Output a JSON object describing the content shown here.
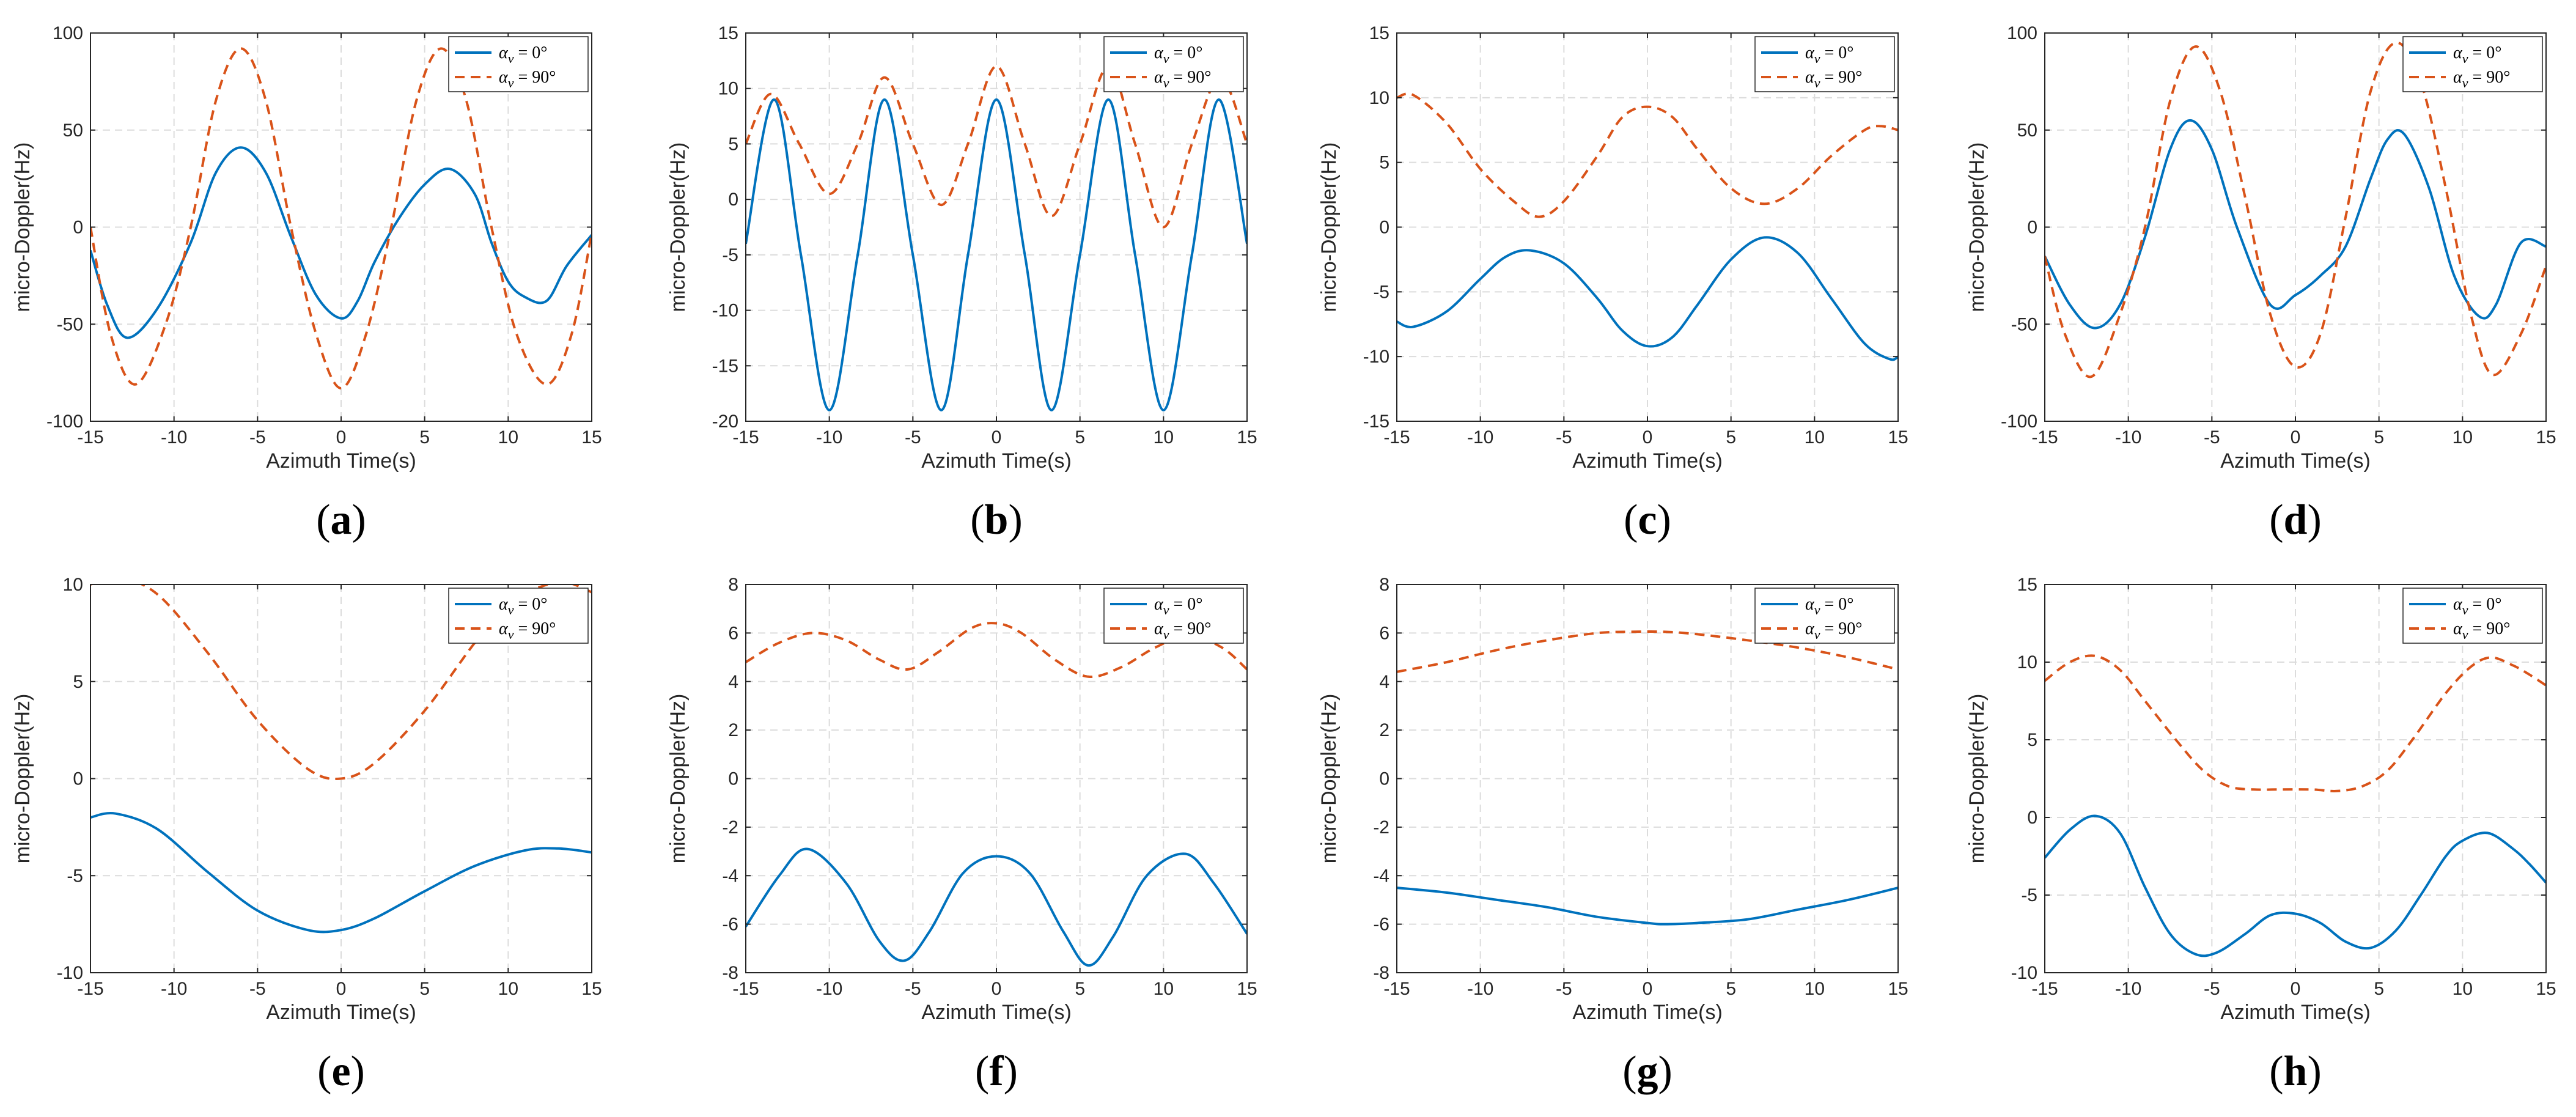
{
  "colors": {
    "series0": "#0072bd",
    "series1": "#d95319",
    "grid": "#dcdcdc",
    "axis": "#262626"
  },
  "legend_labels": [
    "α_v = 0°",
    "α_v = 90°"
  ],
  "chart_data": [
    {
      "panel": "(a)",
      "type": "line",
      "xlabel": "Azimuth Time(s)",
      "ylabel": "micro-Doppler(Hz)",
      "xlim": [
        -15,
        15
      ],
      "ylim": [
        -100,
        100
      ],
      "xticks": [
        -15,
        -10,
        -5,
        0,
        5,
        10,
        15
      ],
      "yticks": [
        -100,
        -50,
        0,
        50,
        100
      ],
      "series": [
        {
          "name": "α_v = 0°",
          "x": [
            -15,
            -14,
            -12.8,
            -11,
            -9,
            -7.5,
            -6,
            -4.5,
            -3,
            -1.5,
            0,
            1,
            2,
            3.5,
            5,
            6.5,
            8,
            9,
            10,
            11,
            12.3,
            13.5,
            15
          ],
          "y": [
            -12,
            -40,
            -57,
            -42,
            -8,
            28,
            41,
            28,
            -5,
            -35,
            -47,
            -38,
            -18,
            5,
            22,
            30,
            17,
            -8,
            -28,
            -36,
            -38,
            -20,
            -4
          ]
        },
        {
          "name": "α_v = 90°",
          "x": [
            -15,
            -13.8,
            -12.3,
            -10.5,
            -9,
            -7.5,
            -6,
            -4.5,
            -3,
            -1.5,
            0,
            1.5,
            3,
            4.5,
            6,
            7.5,
            9,
            10.5,
            12.3,
            13.8,
            15
          ],
          "y": [
            0,
            -55,
            -81,
            -50,
            0,
            65,
            92,
            65,
            0,
            -55,
            -83,
            -55,
            0,
            65,
            92,
            65,
            0,
            -55,
            -81,
            -55,
            -3
          ]
        }
      ]
    },
    {
      "panel": "(b)",
      "type": "line",
      "xlabel": "Azimuth Time(s)",
      "ylabel": "micro-Doppler(Hz)",
      "xlim": [
        -15,
        15
      ],
      "ylim": [
        -20,
        15
      ],
      "xticks": [
        -15,
        -10,
        -5,
        0,
        5,
        10,
        15
      ],
      "yticks": [
        -20,
        -15,
        -10,
        -5,
        0,
        5,
        10,
        15
      ],
      "series": [
        {
          "name": "α_v = 0°",
          "x": [
            -15,
            -13.3,
            -11.7,
            -10,
            -8.3,
            -6.7,
            -5,
            -3.3,
            -1.7,
            0,
            1.7,
            3.3,
            5,
            6.7,
            8.3,
            10,
            11.7,
            13.3,
            15
          ],
          "y": [
            -4,
            9,
            -5,
            -19,
            -5,
            9,
            -5,
            -19,
            -5,
            9,
            -5,
            -19,
            -5,
            9,
            -5,
            -19,
            -5,
            9,
            -4
          ]
        },
        {
          "name": "α_v = 90°",
          "x": [
            -15,
            -13.5,
            -11.8,
            -10,
            -8.3,
            -6.7,
            -5,
            -3.3,
            -1.7,
            0,
            1.7,
            3.3,
            5,
            6.7,
            8.3,
            10,
            11.7,
            13.4,
            15
          ],
          "y": [
            5,
            9.5,
            5,
            0.5,
            5,
            11,
            5,
            -0.5,
            5,
            12,
            5,
            -1.5,
            5,
            12,
            5,
            -2.5,
            5,
            11,
            5
          ]
        }
      ]
    },
    {
      "panel": "(c)",
      "type": "line",
      "xlabel": "Azimuth Time(s)",
      "ylabel": "micro-Doppler(Hz)",
      "xlim": [
        -15,
        15
      ],
      "ylim": [
        -15,
        15
      ],
      "xticks": [
        -15,
        -10,
        -5,
        0,
        5,
        10,
        15
      ],
      "yticks": [
        -15,
        -10,
        -5,
        0,
        5,
        10,
        15
      ],
      "series": [
        {
          "name": "α_v = 0°",
          "x": [
            -15,
            -14,
            -12,
            -10,
            -8.5,
            -7,
            -5,
            -3,
            -1.5,
            0,
            1.5,
            3,
            5,
            7,
            9,
            11,
            13,
            14.5,
            15
          ],
          "y": [
            -7.3,
            -7.7,
            -6.5,
            -4,
            -2.3,
            -1.8,
            -2.8,
            -5.5,
            -8,
            -9.2,
            -8.5,
            -6,
            -2.5,
            -0.8,
            -2,
            -5.5,
            -9,
            -10.2,
            -10
          ]
        },
        {
          "name": "α_v = 90°",
          "x": [
            -15,
            -14,
            -12,
            -10,
            -8,
            -6.5,
            -5,
            -3,
            -1.5,
            0,
            1.5,
            3,
            5,
            7,
            9,
            11,
            13,
            14,
            15
          ],
          "y": [
            10,
            10.2,
            8,
            4.5,
            2,
            0.8,
            2,
            5.5,
            8.5,
            9.3,
            8.5,
            6,
            3,
            1.8,
            3,
            5.5,
            7.5,
            7.8,
            7.5
          ]
        }
      ]
    },
    {
      "panel": "(d)",
      "type": "line",
      "xlabel": "Azimuth Time(s)",
      "ylabel": "micro-Doppler(Hz)",
      "xlim": [
        -15,
        15
      ],
      "ylim": [
        -100,
        100
      ],
      "xticks": [
        -15,
        -10,
        -5,
        0,
        5,
        10,
        15
      ],
      "yticks": [
        -100,
        -50,
        0,
        50,
        100
      ],
      "series": [
        {
          "name": "α_v = 0°",
          "x": [
            -15,
            -13.5,
            -12,
            -10.5,
            -9,
            -7.5,
            -6.3,
            -5,
            -3.5,
            -1.5,
            0,
            1.5,
            3,
            4.5,
            5.5,
            6.5,
            8,
            9.5,
            11,
            12,
            13.5,
            15
          ],
          "y": [
            -15,
            -40,
            -52,
            -40,
            -5,
            40,
            55,
            40,
            0,
            -40,
            -35,
            -25,
            -10,
            25,
            45,
            48,
            20,
            -25,
            -46,
            -40,
            -8,
            -10
          ]
        },
        {
          "name": "α_v = 90°",
          "x": [
            -15,
            -13.8,
            -12.2,
            -10.5,
            -9,
            -7.5,
            -6,
            -4.5,
            -3,
            -1.5,
            0,
            1.5,
            3,
            4.5,
            6,
            7.5,
            9,
            10.5,
            11.8,
            13.5,
            15
          ],
          "y": [
            -15,
            -55,
            -77,
            -45,
            0,
            65,
            93,
            70,
            15,
            -45,
            -72,
            -55,
            5,
            70,
            95,
            75,
            20,
            -45,
            -76,
            -55,
            -20
          ]
        }
      ]
    },
    {
      "panel": "(e)",
      "type": "line",
      "xlabel": "Azimuth Time(s)",
      "ylabel": "micro-Doppler(Hz)",
      "xlim": [
        -15,
        15
      ],
      "ylim": [
        -10,
        10
      ],
      "xticks": [
        -15,
        -10,
        -5,
        0,
        5,
        10,
        15
      ],
      "yticks": [
        -10,
        -5,
        0,
        5,
        10
      ],
      "series": [
        {
          "name": "α_v = 0°",
          "x": [
            -15,
            -13.5,
            -11,
            -8,
            -5,
            -2,
            0,
            2,
            5,
            8,
            11,
            13,
            15
          ],
          "y": [
            -2,
            -1.8,
            -2.6,
            -4.8,
            -6.8,
            -7.8,
            -7.8,
            -7.2,
            -5.8,
            -4.5,
            -3.7,
            -3.6,
            -3.8
          ]
        },
        {
          "name": "α_v = 90°",
          "x": [
            -15,
            -13.5,
            -11,
            -8,
            -5,
            -2,
            0,
            2,
            5,
            8,
            10,
            12,
            13.5,
            15
          ],
          "y": [
            10,
            10.4,
            9.5,
            6.5,
            3,
            0.5,
            0,
            0.8,
            3.5,
            7,
            9,
            9.9,
            10.1,
            9.6
          ]
        }
      ]
    },
    {
      "panel": "(f)",
      "type": "line",
      "xlabel": "Azimuth Time(s)",
      "ylabel": "micro-Doppler(Hz)",
      "xlim": [
        -15,
        15
      ],
      "ylim": [
        -8,
        8
      ],
      "xticks": [
        -15,
        -10,
        -5,
        0,
        5,
        10,
        15
      ],
      "yticks": [
        -8,
        -6,
        -4,
        -2,
        0,
        2,
        4,
        6,
        8
      ],
      "series": [
        {
          "name": "α_v = 0°",
          "x": [
            -15,
            -13,
            -11.3,
            -9,
            -7,
            -5.5,
            -4,
            -2,
            0,
            2,
            4,
            5.5,
            7,
            9,
            11.3,
            13,
            15
          ],
          "y": [
            -6.1,
            -4,
            -2.9,
            -4.3,
            -6.7,
            -7.5,
            -6.3,
            -3.9,
            -3.2,
            -3.9,
            -6.3,
            -7.7,
            -6.5,
            -4,
            -3.1,
            -4.3,
            -6.4
          ]
        },
        {
          "name": "α_v = 90°",
          "x": [
            -15,
            -13,
            -11,
            -9,
            -7,
            -5.3,
            -3.5,
            -1.5,
            0,
            1.5,
            3.5,
            5.5,
            7.5,
            9.5,
            11.5,
            13.5,
            15
          ],
          "y": [
            4.8,
            5.6,
            6,
            5.7,
            4.9,
            4.5,
            5.2,
            6.2,
            6.4,
            6,
            4.9,
            4.2,
            4.6,
            5.4,
            5.9,
            5.4,
            4.5
          ]
        }
      ]
    },
    {
      "panel": "(g)",
      "type": "line",
      "xlabel": "Azimuth Time(s)",
      "ylabel": "micro-Doppler(Hz)",
      "xlim": [
        -15,
        15
      ],
      "ylim": [
        -8,
        8
      ],
      "xticks": [
        -15,
        -10,
        -5,
        0,
        5,
        10,
        15
      ],
      "yticks": [
        -8,
        -6,
        -4,
        -2,
        0,
        2,
        4,
        6,
        8
      ],
      "series": [
        {
          "name": "α_v = 0°",
          "x": [
            -15,
            -12,
            -9,
            -6,
            -3,
            0,
            1,
            3,
            6,
            9,
            12,
            15
          ],
          "y": [
            -4.5,
            -4.7,
            -5,
            -5.3,
            -5.7,
            -5.95,
            -6,
            -5.95,
            -5.8,
            -5.4,
            -5,
            -4.5
          ]
        },
        {
          "name": "α_v = 90°",
          "x": [
            -15,
            -12,
            -9,
            -6,
            -3,
            -1,
            1,
            3,
            6,
            9,
            12,
            15
          ],
          "y": [
            4.4,
            4.8,
            5.3,
            5.7,
            6,
            6.05,
            6.05,
            5.95,
            5.7,
            5.4,
            5,
            4.5
          ]
        }
      ]
    },
    {
      "panel": "(h)",
      "type": "line",
      "xlabel": "Azimuth Time(s)",
      "ylabel": "micro-Doppler(Hz)",
      "xlim": [
        -15,
        15
      ],
      "ylim": [
        -10,
        15
      ],
      "xticks": [
        -15,
        -10,
        -5,
        0,
        5,
        10,
        15
      ],
      "yticks": [
        -10,
        -5,
        0,
        5,
        10,
        15
      ],
      "series": [
        {
          "name": "α_v = 0°",
          "x": [
            -15,
            -13.5,
            -12,
            -10.5,
            -9,
            -7.5,
            -6,
            -4.7,
            -3,
            -1.5,
            0,
            1.5,
            3,
            4.5,
            6,
            7.5,
            9,
            10,
            11.5,
            13,
            14,
            15
          ],
          "y": [
            -2.6,
            -0.8,
            0.1,
            -1,
            -4.5,
            -7.5,
            -8.8,
            -8.7,
            -7.5,
            -6.3,
            -6.2,
            -6.8,
            -8,
            -8.4,
            -7.3,
            -5,
            -2.5,
            -1.5,
            -1,
            -2,
            -3,
            -4.2
          ]
        },
        {
          "name": "α_v = 90°",
          "x": [
            -15,
            -13.5,
            -12,
            -10.5,
            -9,
            -7,
            -5.5,
            -4,
            -2.5,
            -1,
            1,
            2.5,
            4,
            5.5,
            7,
            9,
            10.5,
            11.7,
            13,
            14,
            15
          ],
          "y": [
            8.8,
            10,
            10.4,
            9.5,
            7.5,
            4.8,
            3,
            2,
            1.8,
            1.8,
            1.8,
            1.7,
            2,
            3,
            5,
            8,
            9.7,
            10.3,
            9.8,
            9.2,
            8.5
          ]
        }
      ]
    }
  ]
}
